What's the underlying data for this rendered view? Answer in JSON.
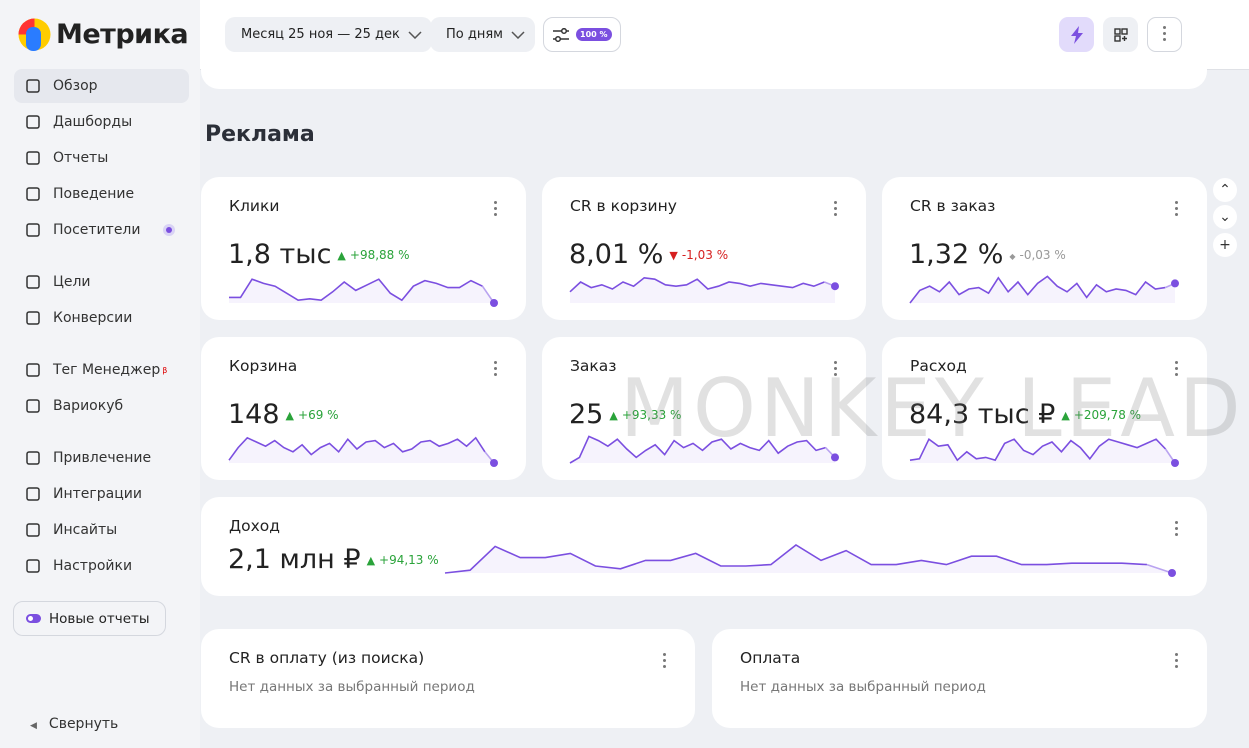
{
  "sidebar": {
    "logo": "Метрика",
    "groups": [
      [
        {
          "label": "Обзор"
        },
        {
          "label": "Дашборды"
        },
        {
          "label": "Отчеты"
        },
        {
          "label": "Поведение"
        },
        {
          "label": "Посетители"
        }
      ],
      [
        {
          "label": "Цели"
        },
        {
          "label": "Конверсии"
        }
      ],
      [
        {
          "label": "Тег Менеджер",
          "badge": "β"
        },
        {
          "label": "Вариокуб"
        }
      ],
      [
        {
          "label": "Привлечение"
        },
        {
          "label": "Интеграции"
        },
        {
          "label": "Инсайты"
        },
        {
          "label": "Настройки"
        }
      ]
    ],
    "new_reports": "Новые отчеты",
    "collapse": "Свернуть"
  },
  "toolbar": {
    "period": "Месяц 25 ноя — 25 дек",
    "grouping": "По дням",
    "sampling": "100 %"
  },
  "section_title": "Реклама",
  "widgets": [
    {
      "title": "Клики",
      "value": "1,8 тыс",
      "change": "+98,88 %",
      "trend": "up",
      "sparkline": [
        20,
        20,
        85,
        70,
        60,
        35,
        10,
        15,
        10,
        40,
        75,
        45,
        65,
        85,
        35,
        10,
        60,
        80,
        70,
        55,
        55,
        80,
        60,
        0
      ]
    },
    {
      "title": "CR в корзину",
      "value": "8,01 %",
      "change": "-1,03 %",
      "trend": "down",
      "sparkline": [
        40,
        75,
        55,
        65,
        50,
        75,
        60,
        90,
        85,
        65,
        60,
        65,
        85,
        50,
        60,
        75,
        70,
        60,
        70,
        65,
        60,
        55,
        70,
        60,
        75,
        60
      ]
    },
    {
      "title": "CR в заказ",
      "value": "1,32 %",
      "change": "-0,03 %",
      "trend": "neutral",
      "sparkline": [
        0,
        45,
        60,
        40,
        75,
        30,
        50,
        55,
        35,
        90,
        40,
        75,
        30,
        70,
        95,
        60,
        40,
        70,
        20,
        65,
        40,
        50,
        45,
        30,
        75,
        50,
        55,
        70
      ]
    },
    {
      "title": "Корзина",
      "value": "148",
      "change": "+69 %",
      "trend": "up",
      "sparkline": [
        10,
        55,
        90,
        75,
        60,
        80,
        55,
        40,
        65,
        30,
        55,
        70,
        40,
        85,
        50,
        75,
        80,
        55,
        70,
        40,
        50,
        75,
        80,
        60,
        70,
        85,
        60,
        90,
        40,
        0
      ]
    },
    {
      "title": "Заказ",
      "value": "25",
      "change": "+93,33 %",
      "trend": "up",
      "sparkline": [
        0,
        20,
        95,
        80,
        60,
        85,
        50,
        20,
        45,
        65,
        30,
        80,
        55,
        70,
        45,
        75,
        85,
        50,
        70,
        55,
        45,
        80,
        35,
        60,
        75,
        80,
        45,
        55,
        20
      ]
    },
    {
      "title": "Расход",
      "value": "84,3 тыс ₽",
      "change": "+209,78 %",
      "trend": "up",
      "sparkline": [
        10,
        15,
        85,
        60,
        65,
        10,
        40,
        15,
        20,
        10,
        70,
        85,
        45,
        30,
        60,
        75,
        40,
        80,
        55,
        15,
        60,
        85,
        75,
        65,
        55,
        70,
        85,
        50,
        0
      ]
    },
    {
      "title": "Доход",
      "value": "2,1 млн ₽",
      "change": "+94,13 %",
      "trend": "up",
      "sparkline": [
        0,
        10,
        95,
        55,
        55,
        70,
        25,
        15,
        45,
        45,
        70,
        25,
        25,
        30,
        100,
        45,
        80,
        30,
        30,
        45,
        30,
        60,
        60,
        30,
        30,
        35,
        35,
        35,
        30,
        0
      ]
    }
  ],
  "empty_widgets": [
    {
      "title": "CR в оплату (из поиска)",
      "message": "Нет данных за выбранный период"
    },
    {
      "title": "Оплата",
      "message": "Нет данных за выбранный период"
    }
  ],
  "watermark": "MONKEY LEAD"
}
